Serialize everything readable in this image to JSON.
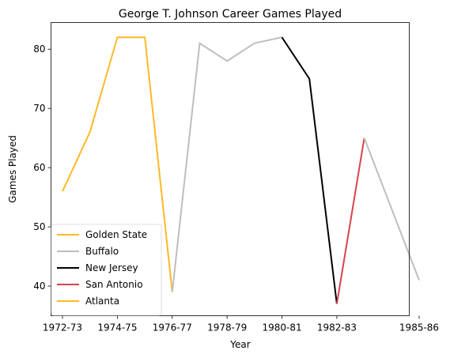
{
  "chart_data": {
    "type": "line",
    "title": "George T. Johnson Career Games Played",
    "xlabel": "Year",
    "ylabel": "Games Played",
    "ylim": [
      35,
      84.5
    ],
    "yticks": [
      40,
      50,
      60,
      70,
      80
    ],
    "xticks": [
      "1972-73",
      "1974-75",
      "1976-77",
      "1978-79",
      "1980-81",
      "1982-83",
      "1985-86"
    ],
    "seasons": [
      "1972-73",
      "1973-74",
      "1974-75",
      "1975-76",
      "1976-77",
      "1977-78",
      "1978-79",
      "1979-80",
      "1980-81",
      "1981-82",
      "1982-83",
      "1983-84",
      "1984-85",
      "1985-86"
    ],
    "grid": false,
    "legend_position": "lower-left",
    "series": [
      {
        "name": "Golden State",
        "color": "#FDB927",
        "x": [
          "1972-73",
          "1973-74",
          "1974-75",
          "1975-76",
          "1976-77"
        ],
        "values": [
          56,
          66,
          82,
          82,
          39
        ]
      },
      {
        "name": "Buffalo",
        "color": "#BEBEBE",
        "x": [
          "1976-77",
          "1977-78",
          "1978-79",
          "1979-80",
          "1980-81"
        ],
        "values": [
          39,
          81,
          78,
          81,
          82
        ]
      },
      {
        "name": "New Jersey",
        "color": "#000000",
        "x": [
          "1980-81",
          "1981-82",
          "1982-83"
        ],
        "values": [
          82,
          75,
          37
        ]
      },
      {
        "name": "San Antonio",
        "color": "#D9434B",
        "x": [
          "1982-83",
          "1983-84"
        ],
        "values": [
          37,
          65
        ]
      },
      {
        "name": "Atlanta",
        "color": "#FDB927",
        "x": [],
        "values": []
      },
      {
        "name": "",
        "color": "#BEBEBE",
        "x": [
          "1983-84",
          "1985-86"
        ],
        "values": [
          65,
          41
        ]
      }
    ]
  }
}
